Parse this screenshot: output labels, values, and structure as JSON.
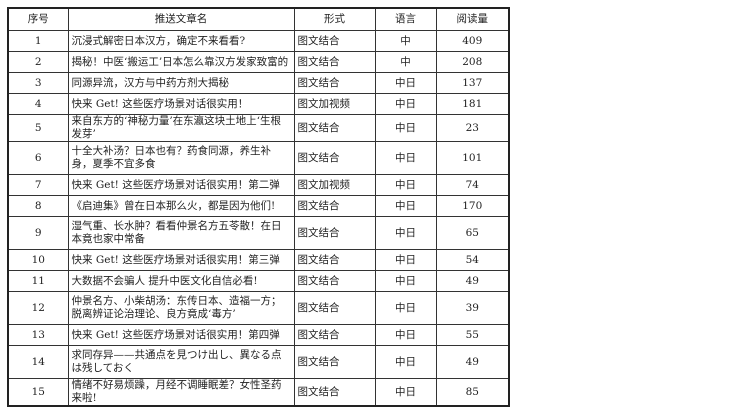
{
  "headers": [
    "序号",
    "推送文章名",
    "形式",
    "语言",
    "阅读量"
  ],
  "rows": [
    {
      "no": "1",
      "title": "沉浸式解密日本汉方，确定不来看看?",
      "format": "图文结合",
      "lang": "中",
      "reads": "409"
    },
    {
      "no": "2",
      "title": "揭秘！中医‘搬运工’日本怎么靠汉方发家致富的",
      "format": "图文结合",
      "lang": "中",
      "reads": "208"
    },
    {
      "no": "3",
      "title": "同源异流，汉方与中药方剂大揭秘",
      "format": "图文结合",
      "lang": "中日",
      "reads": "137"
    },
    {
      "no": "4",
      "title": "快来 Get! 这些医疗场景对话很实用！",
      "format": "图文加视频",
      "lang": "中日",
      "reads": "181"
    },
    {
      "no": "5",
      "title": "来自东方的‘神秘力量’在东瀛这块土地上‘生根发芽’",
      "format": "图文结合",
      "lang": "中日",
      "reads": "23"
    },
    {
      "no": "6",
      "title": "十全大补汤？日本也有？药食同源，养生补身，夏季不宜多食",
      "format": "图文结合",
      "lang": "中日",
      "reads": "101"
    },
    {
      "no": "7",
      "title": "快来 Get! 这些医疗场景对话很实用！第二弹",
      "format": "图文加视频",
      "lang": "中日",
      "reads": "74"
    },
    {
      "no": "8",
      "title": "《启迪集》曾在日本那么火，都是因为他们!",
      "format": "图文结合",
      "lang": "中日",
      "reads": "170"
    },
    {
      "no": "9",
      "title": "湿气重、长水肿？看看仲景名方五苓散！在日本竟也家中常备",
      "format": "图文结合",
      "lang": "中日",
      "reads": "65"
    },
    {
      "no": "10",
      "title": "快来 Get! 这些医疗场景对话很实用！第三弹",
      "format": "图文结合",
      "lang": "中日",
      "reads": "54"
    },
    {
      "no": "11",
      "title": "大数据不会骗人 提升中医文化自信必看!",
      "format": "图文结合",
      "lang": "中日",
      "reads": "49"
    },
    {
      "no": "12",
      "title": "仲景名方、小柴胡汤：东传日本、造福一方；脱离辨证论治理论、良方竟成‘毒方’",
      "format": "图文结合",
      "lang": "中日",
      "reads": "39"
    },
    {
      "no": "13",
      "title": "快来 Get! 这些医疗场景对话很实用！第四弹",
      "format": "图文结合",
      "lang": "中日",
      "reads": "55"
    },
    {
      "no": "14",
      "title": "求同存异——共通点を見つけ出し、異なる点は残しておく",
      "format": "图文结合",
      "lang": "中日",
      "reads": "49"
    },
    {
      "no": "15",
      "title": "情绪不好易烦躁，月经不调睡眠差？女性圣药来啦!",
      "format": "图文结合",
      "lang": "中日",
      "reads": "85"
    }
  ]
}
